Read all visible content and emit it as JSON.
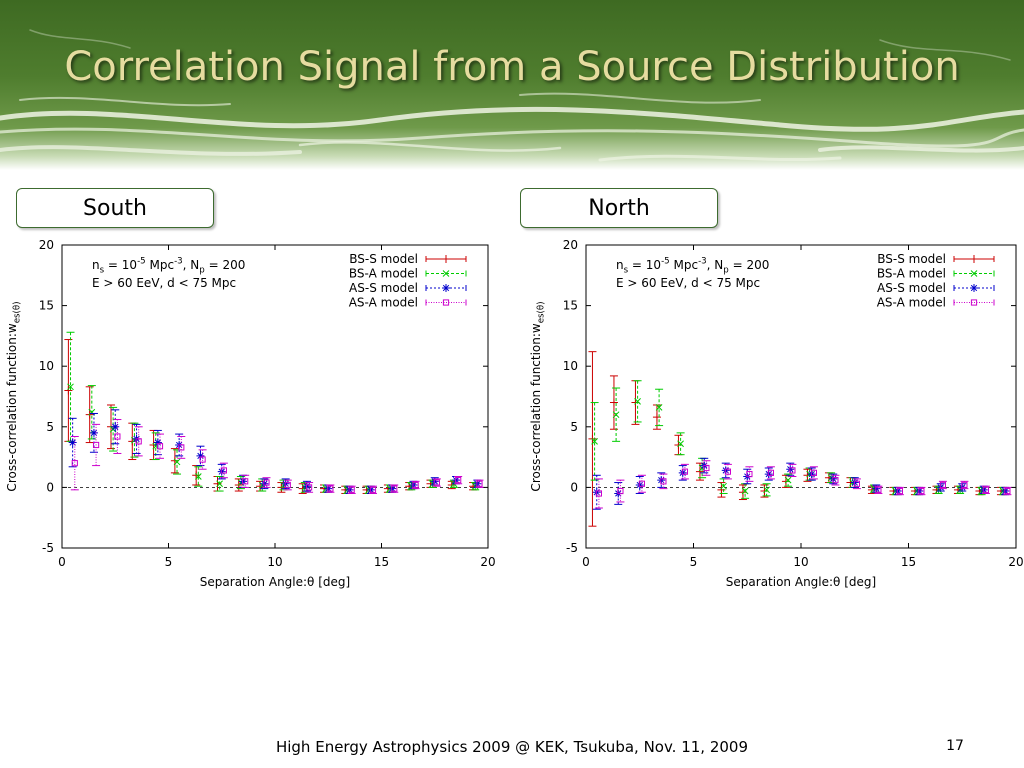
{
  "slide": {
    "title": "Correlation Signal from a Source Distribution",
    "footer": "High Energy Astrophysics 2009 @ KEK, Tsukuba, Nov. 11, 2009",
    "page_number": "17",
    "theme_color": "#4f7d2e",
    "title_color": "#e6dca0"
  },
  "panels": [
    {
      "label": "South"
    },
    {
      "label": "North"
    }
  ],
  "chart_data": [
    {
      "type": "scatter",
      "name": "South",
      "xlabel": "Separation Angle:θ [deg]",
      "ylabel": "Cross-correlation function:w_es(θ)",
      "xlim": [
        0,
        20
      ],
      "ylim": [
        -5,
        20
      ],
      "xticks": [
        0,
        5,
        10,
        15,
        20
      ],
      "yticks": [
        -5,
        0,
        5,
        10,
        15,
        20
      ],
      "zero_line": true,
      "annotation": [
        "n_s = 10^-5 Mpc^-3, N_p = 200",
        "E > 60 EeV, d < 75 Mpc"
      ],
      "series": [
        {
          "name": "BS-S model",
          "color": "#cc0000",
          "marker": "plus",
          "x": [
            0.3,
            1.3,
            2.3,
            3.3,
            4.3,
            5.3,
            6.3,
            7.3,
            8.3,
            9.3,
            10.3,
            11.3,
            12.3,
            13.3,
            14.3,
            15.3,
            16.3,
            17.3,
            18.3,
            19.3
          ],
          "y": [
            8.0,
            6.0,
            5.0,
            3.8,
            3.5,
            2.2,
            1.0,
            0.3,
            0.2,
            0.1,
            0.0,
            -0.1,
            -0.1,
            -0.2,
            -0.2,
            -0.1,
            0.1,
            0.3,
            0.2,
            0.1
          ],
          "err": [
            4.2,
            2.3,
            1.8,
            1.5,
            1.2,
            1.0,
            0.8,
            0.6,
            0.5,
            0.4,
            0.4,
            0.4,
            0.3,
            0.3,
            0.3,
            0.3,
            0.3,
            0.3,
            0.3,
            0.3
          ]
        },
        {
          "name": "BS-A model",
          "color": "#00cc00",
          "marker": "cross",
          "x": [
            0.4,
            1.4,
            2.4,
            3.4,
            4.4,
            5.4,
            6.4,
            7.4,
            8.4,
            9.4,
            10.4,
            11.4,
            12.4,
            13.4,
            14.4,
            15.4,
            16.4,
            17.4,
            18.4,
            19.4
          ],
          "y": [
            8.3,
            6.2,
            4.8,
            3.9,
            3.4,
            2.1,
            0.9,
            0.3,
            0.4,
            0.2,
            0.2,
            0.0,
            -0.1,
            -0.2,
            -0.2,
            -0.1,
            0.1,
            0.3,
            0.3,
            0.1
          ],
          "err": [
            4.5,
            2.2,
            1.8,
            1.4,
            1.1,
            1.0,
            0.8,
            0.6,
            0.5,
            0.5,
            0.4,
            0.4,
            0.3,
            0.3,
            0.3,
            0.3,
            0.3,
            0.3,
            0.3,
            0.3
          ]
        },
        {
          "name": "AS-S model",
          "color": "#0000cc",
          "marker": "star",
          "x": [
            0.5,
            1.5,
            2.5,
            3.5,
            4.5,
            5.5,
            6.5,
            7.5,
            8.5,
            9.5,
            10.5,
            11.5,
            12.5,
            13.5,
            14.5,
            15.5,
            16.5,
            17.5,
            18.5,
            19.5
          ],
          "y": [
            3.7,
            4.5,
            5.0,
            4.0,
            3.7,
            3.5,
            2.6,
            1.3,
            0.5,
            0.3,
            0.3,
            0.1,
            -0.1,
            -0.2,
            -0.2,
            -0.1,
            0.2,
            0.5,
            0.6,
            0.3
          ],
          "err": [
            2.0,
            1.6,
            1.4,
            1.2,
            1.0,
            0.9,
            0.8,
            0.6,
            0.5,
            0.4,
            0.4,
            0.4,
            0.3,
            0.3,
            0.3,
            0.3,
            0.3,
            0.3,
            0.3,
            0.3
          ]
        },
        {
          "name": "AS-A model",
          "color": "#cc00cc",
          "marker": "square",
          "x": [
            0.6,
            1.6,
            2.6,
            3.6,
            4.6,
            5.6,
            6.6,
            7.6,
            8.6,
            9.6,
            10.6,
            11.6,
            12.6,
            13.6,
            14.6,
            15.6,
            16.6,
            17.6,
            18.6,
            19.6
          ],
          "y": [
            2.0,
            3.5,
            4.2,
            3.8,
            3.4,
            3.3,
            2.3,
            1.4,
            0.5,
            0.4,
            0.2,
            0.0,
            -0.1,
            -0.2,
            -0.2,
            -0.1,
            0.2,
            0.4,
            0.6,
            0.3
          ],
          "err": [
            2.2,
            1.7,
            1.4,
            1.2,
            1.0,
            0.9,
            0.8,
            0.6,
            0.5,
            0.4,
            0.4,
            0.4,
            0.3,
            0.3,
            0.3,
            0.3,
            0.3,
            0.3,
            0.3,
            0.3
          ]
        }
      ]
    },
    {
      "type": "scatter",
      "name": "North",
      "xlabel": "Separation Angle:θ [deg]",
      "ylabel": "Cross-correlation function:w_es(θ)",
      "xlim": [
        0,
        20
      ],
      "ylim": [
        -5,
        20
      ],
      "xticks": [
        0,
        5,
        10,
        15,
        20
      ],
      "yticks": [
        -5,
        0,
        5,
        10,
        15,
        20
      ],
      "zero_line": true,
      "annotation": [
        "n_s = 10^-5 Mpc^-3, N_p = 200",
        "E > 60 EeV, d < 75 Mpc"
      ],
      "series": [
        {
          "name": "BS-S model",
          "color": "#cc0000",
          "marker": "plus",
          "x": [
            0.3,
            1.3,
            2.3,
            3.3,
            4.3,
            5.3,
            6.3,
            7.3,
            8.3,
            9.3,
            10.3,
            11.3,
            12.3,
            13.3,
            14.3,
            15.3,
            16.3,
            17.3,
            18.3,
            19.3
          ],
          "y": [
            4.0,
            7.0,
            7.0,
            5.8,
            3.5,
            1.3,
            -0.2,
            -0.4,
            -0.3,
            0.5,
            1.0,
            0.8,
            0.4,
            -0.2,
            -0.3,
            -0.3,
            -0.2,
            -0.2,
            -0.3,
            -0.3
          ],
          "err": [
            7.2,
            2.2,
            1.8,
            1.0,
            0.8,
            0.7,
            0.6,
            0.6,
            0.5,
            0.5,
            0.5,
            0.4,
            0.4,
            0.3,
            0.3,
            0.3,
            0.3,
            0.3,
            0.3,
            0.3
          ]
        },
        {
          "name": "BS-A model",
          "color": "#00cc00",
          "marker": "cross",
          "x": [
            0.4,
            1.4,
            2.4,
            3.4,
            4.4,
            5.4,
            6.4,
            7.4,
            8.4,
            9.4,
            10.4,
            11.4,
            12.4,
            13.4,
            14.4,
            15.4,
            16.4,
            17.4,
            18.4,
            19.4
          ],
          "y": [
            3.8,
            6.0,
            7.1,
            6.6,
            3.6,
            1.6,
            0.1,
            -0.3,
            -0.2,
            0.6,
            1.1,
            0.8,
            0.4,
            -0.1,
            -0.3,
            -0.3,
            -0.2,
            -0.2,
            -0.3,
            -0.3
          ],
          "err": [
            3.2,
            2.2,
            1.7,
            1.5,
            0.9,
            0.8,
            0.6,
            0.6,
            0.5,
            0.5,
            0.5,
            0.4,
            0.4,
            0.3,
            0.3,
            0.3,
            0.3,
            0.3,
            0.3,
            0.3
          ]
        },
        {
          "name": "AS-S model",
          "color": "#0000cc",
          "marker": "star",
          "x": [
            0.5,
            1.5,
            2.5,
            3.5,
            4.5,
            5.5,
            6.5,
            7.5,
            8.5,
            9.5,
            10.5,
            11.5,
            12.5,
            13.5,
            14.5,
            15.5,
            16.5,
            17.5,
            18.5,
            19.5
          ],
          "y": [
            -0.4,
            -0.5,
            0.2,
            0.6,
            1.2,
            1.8,
            1.4,
            0.9,
            1.1,
            1.5,
            1.1,
            0.7,
            0.4,
            -0.1,
            -0.3,
            -0.3,
            0.0,
            0.0,
            -0.2,
            -0.3
          ],
          "err": [
            1.4,
            0.9,
            0.7,
            0.6,
            0.6,
            0.6,
            0.6,
            0.6,
            0.5,
            0.5,
            0.5,
            0.4,
            0.4,
            0.3,
            0.3,
            0.3,
            0.3,
            0.3,
            0.3,
            0.3
          ]
        },
        {
          "name": "AS-A model",
          "color": "#cc00cc",
          "marker": "square",
          "x": [
            0.6,
            1.6,
            2.6,
            3.6,
            4.6,
            5.6,
            6.6,
            7.6,
            8.6,
            9.6,
            10.6,
            11.6,
            12.6,
            13.6,
            14.6,
            15.6,
            16.6,
            17.6,
            18.6,
            19.6
          ],
          "y": [
            -0.5,
            -0.3,
            0.3,
            0.5,
            1.3,
            1.6,
            1.3,
            1.1,
            1.2,
            1.4,
            1.2,
            0.6,
            0.3,
            -0.2,
            -0.3,
            -0.3,
            0.2,
            0.2,
            -0.2,
            -0.3
          ],
          "err": [
            1.2,
            0.9,
            0.7,
            0.6,
            0.6,
            0.6,
            0.6,
            0.6,
            0.5,
            0.5,
            0.5,
            0.4,
            0.4,
            0.3,
            0.3,
            0.3,
            0.3,
            0.3,
            0.3,
            0.3
          ]
        }
      ]
    }
  ]
}
